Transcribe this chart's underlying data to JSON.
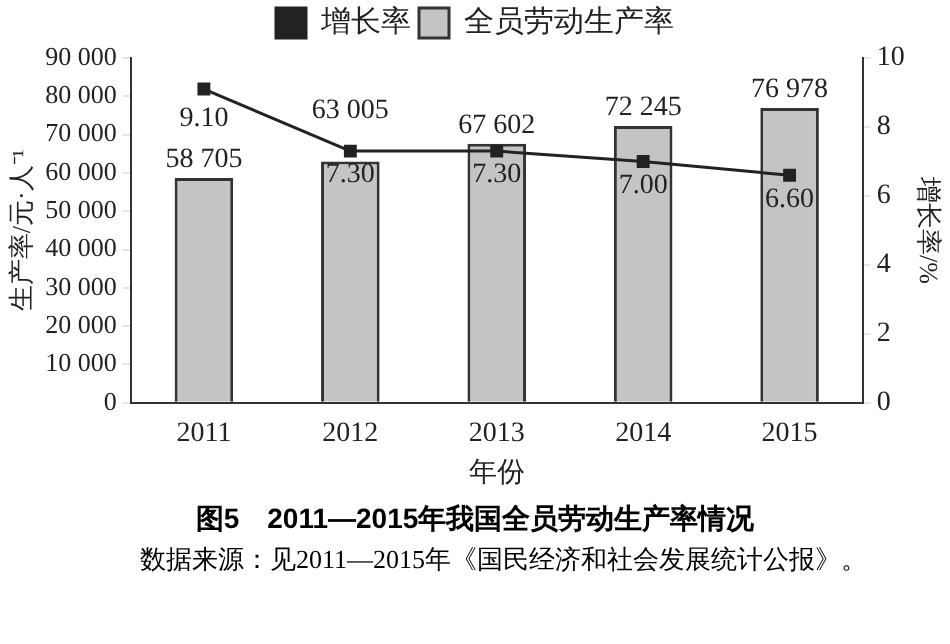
{
  "chart_data": {
    "type": "bar",
    "title": "图5　2011—2015年我国全员劳动生产率情况",
    "annotations": [
      "数据来源：见2011—2015年《国民经济和社会发展统计公报》。"
    ],
    "categories": [
      "2011",
      "2012",
      "2013",
      "2014",
      "2015"
    ],
    "series": [
      {
        "name": "全员劳动生产率",
        "color": "#c4c4c4",
        "values": [
          58705,
          63005,
          67602,
          72245,
          76978
        ],
        "value_labels": [
          "58 705",
          "63 005",
          "67 602",
          "72 245",
          "76 978"
        ]
      },
      {
        "name": "增长率",
        "type": "line",
        "axis": "y2",
        "color": "#222222",
        "marker": "square",
        "values": [
          9.1,
          7.3,
          7.3,
          7.0,
          6.6
        ],
        "value_labels": [
          "9.10",
          "7.30",
          "7.30",
          "7.00",
          "6.60"
        ]
      }
    ],
    "xlabel": "年份",
    "ylabel": "生产率/元·人⁻¹",
    "y2label": "增长率/%",
    "ylim": [
      0,
      90000
    ],
    "yticks": [
      0,
      {
        "value": 10000,
        "label": "10 000"
      },
      {
        "value": 20000,
        "label": "20 000"
      },
      {
        "value": 30000,
        "label": "30 000"
      },
      {
        "value": 40000,
        "label": "40 000"
      },
      {
        "value": 50000,
        "label": "50 000"
      },
      {
        "value": 60000,
        "label": "60 000"
      },
      {
        "value": 70000,
        "label": "70 000"
      },
      {
        "value": 80000,
        "label": "80 000"
      },
      {
        "value": 90000,
        "label": "90 000"
      }
    ],
    "y2lim": [
      0,
      10
    ],
    "y2ticks": [
      0,
      2,
      4,
      6,
      8,
      10
    ],
    "grid": false,
    "legend": "top"
  }
}
